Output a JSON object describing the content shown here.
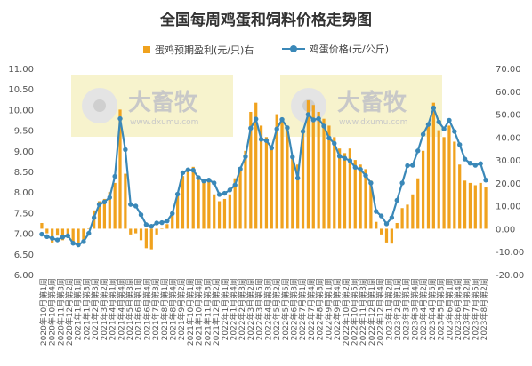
{
  "chart_data": {
    "type": "bar+line",
    "title": "全国每周鸡蛋和饲料价格走势图",
    "legend": [
      {
        "name": "蛋鸡预期盈利(元/只)右",
        "color": "#f0a21e",
        "kind": "bar"
      },
      {
        "name": "鸡蛋价格(元/公斤)",
        "color": "#3a88b8",
        "kind": "line"
      }
    ],
    "watermark": {
      "brand": "大畜牧",
      "url": "www.dxumu.com"
    },
    "left_axis": {
      "min": 6.0,
      "max": 11.0,
      "ticks": [
        "6.00",
        "6.50",
        "7.00",
        "7.50",
        "8.00",
        "8.50",
        "9.00",
        "9.50",
        "10.00",
        "10.50",
        "11.00"
      ]
    },
    "right_axis": {
      "min": -20,
      "max": 70,
      "ticks": [
        "-20.00",
        "-10.00",
        "0.00",
        "10.00",
        "20.00",
        "30.00",
        "40.00",
        "50.00",
        "60.00",
        "70.00"
      ]
    },
    "x_tick_labels": [
      "2020年10月第1周",
      "2020年10月第4周",
      "2020年11月第3周",
      "2020年12月第2周",
      "2021年1月第1周",
      "2021年1月第3周",
      "2021年2月第3周",
      "2021年3月第2周",
      "2021年4月第1周",
      "2021年4月第4周",
      "2021年5月第3周",
      "2021年6月第1周",
      "2021年6月第4周",
      "2021年7月第3周",
      "2021年8月第1周",
      "2021年8月第4周",
      "2021年9月第2周",
      "2021年10月第1周",
      "2021年10月第4周",
      "2021年11月第3周",
      "2021年12月第2周",
      "2022年1月第1周",
      "2022年1月第4周",
      "2022年2月第3周",
      "2022年3月第2周",
      "2022年3月第5周",
      "2022年4月第3周",
      "2022年5月第2周",
      "2022年5月第5周",
      "2022年6月第3周",
      "2022年7月第1周",
      "2022年7月第4周",
      "2022年8月第3周",
      "2022年9月第1周",
      "2022年9月第4周",
      "2022年10月第2周",
      "2022年10月第5周",
      "2022年11月第3周",
      "2022年12月第1周",
      "2022年12月第4周",
      "2023年1月第2周",
      "2023年2月第1周",
      "2023年3月第1周",
      "2023年3月第4周",
      "2023年4月第2周",
      "2023年4月第5周",
      "2023年5月第3周",
      "2023年6月第1周",
      "2023年6月第4周",
      "2023年7月第2周",
      "2023年7月第5周",
      "2023年8月第2周"
    ],
    "egg_price": [
      6.98,
      6.92,
      6.88,
      6.84,
      6.91,
      6.94,
      6.76,
      6.72,
      6.8,
      7.0,
      7.38,
      7.7,
      7.76,
      7.87,
      8.38,
      9.78,
      9.03,
      7.7,
      7.66,
      7.45,
      7.21,
      7.17,
      7.25,
      7.26,
      7.3,
      7.48,
      7.95,
      8.47,
      8.54,
      8.53,
      8.35,
      8.27,
      8.29,
      8.22,
      7.94,
      7.97,
      8.05,
      8.17,
      8.56,
      8.86,
      9.55,
      9.77,
      9.28,
      9.25,
      9.07,
      9.53,
      9.76,
      9.56,
      8.85,
      8.34,
      9.47,
      9.88,
      9.75,
      9.78,
      9.6,
      9.31,
      9.18,
      8.87,
      8.82,
      8.76,
      8.6,
      8.55,
      8.4,
      8.22,
      7.53,
      7.42,
      7.23,
      7.38,
      7.8,
      8.22,
      8.64,
      8.65,
      9.0,
      9.4,
      9.64,
      10.04,
      9.7,
      9.53,
      9.74,
      9.47,
      9.15,
      8.8,
      8.7,
      8.65,
      8.69,
      8.29
    ],
    "profit": [
      2.5,
      -2.0,
      -6.0,
      -3.0,
      -5.0,
      -4.0,
      -7.0,
      -8.0,
      -5.0,
      0.0,
      8.0,
      12.0,
      13.0,
      16.0,
      20.0,
      52.0,
      24.0,
      -2.5,
      -2.0,
      -5.0,
      -8.5,
      -9.0,
      -2.5,
      0.0,
      2.0,
      6.0,
      15.0,
      23.0,
      26.0,
      27.0,
      23.0,
      21.0,
      21.0,
      15.0,
      12.0,
      13.0,
      15.0,
      22.0,
      25.0,
      34.0,
      51.0,
      55.0,
      45.0,
      40.0,
      36.0,
      50.0,
      48.0,
      45.0,
      31.0,
      28.0,
      42.0,
      56.0,
      54.0,
      51.0,
      48.0,
      45.0,
      40.0,
      35.0,
      33.0,
      35.0,
      30.0,
      28.0,
      26.0,
      21.0,
      3.0,
      -2.5,
      -6.0,
      -6.5,
      2.5,
      9.0,
      10.5,
      15.0,
      22.0,
      34.0,
      45.0,
      55.0,
      43.0,
      40.0,
      45.0,
      38.0,
      28.0,
      21.0,
      20.0,
      19.0,
      20.0,
      18.0
    ]
  }
}
